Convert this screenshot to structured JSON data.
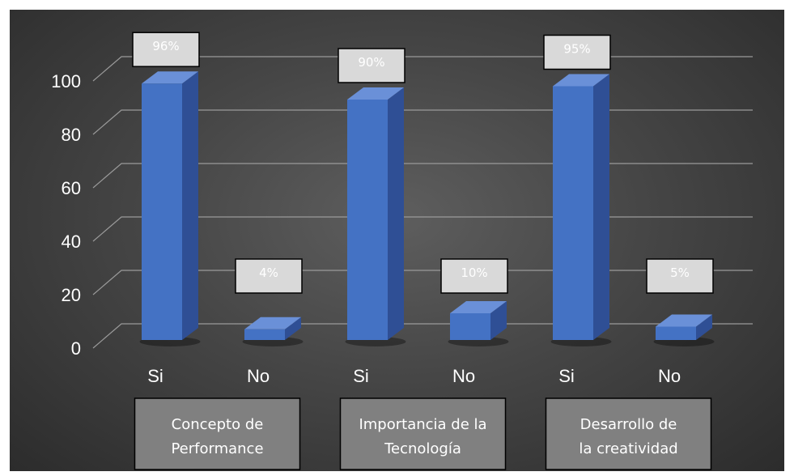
{
  "chart_data": {
    "type": "bar",
    "style": "3d-column",
    "categories": [
      "Si",
      "No",
      "Si",
      "No",
      "Si",
      "No"
    ],
    "values": [
      96,
      4,
      90,
      10,
      95,
      5
    ],
    "data_labels": [
      "96%",
      "4%",
      "90%",
      "10%",
      "95%",
      "5%"
    ],
    "groups": [
      {
        "label_lines": [
          "Concepto de",
          "Performance"
        ],
        "span": [
          0,
          1
        ]
      },
      {
        "label_lines": [
          "Importancia de la",
          "Tecnología"
        ],
        "span": [
          2,
          3
        ]
      },
      {
        "label_lines": [
          "Desarrollo de",
          "la creatividad"
        ],
        "span": [
          4,
          5
        ]
      }
    ],
    "yticks": [
      0,
      20,
      40,
      60,
      80,
      100
    ],
    "ylim": [
      0,
      100
    ],
    "grid": true,
    "legend": "none",
    "colors": {
      "bar_front": "#4472c4",
      "bar_side": "#2f4f95",
      "bar_top": "#6a90d8",
      "background": "#4a4a4a",
      "gridline": "#9a9a9a",
      "label_box": "#d9d9d9",
      "group_box": "#808080"
    }
  }
}
